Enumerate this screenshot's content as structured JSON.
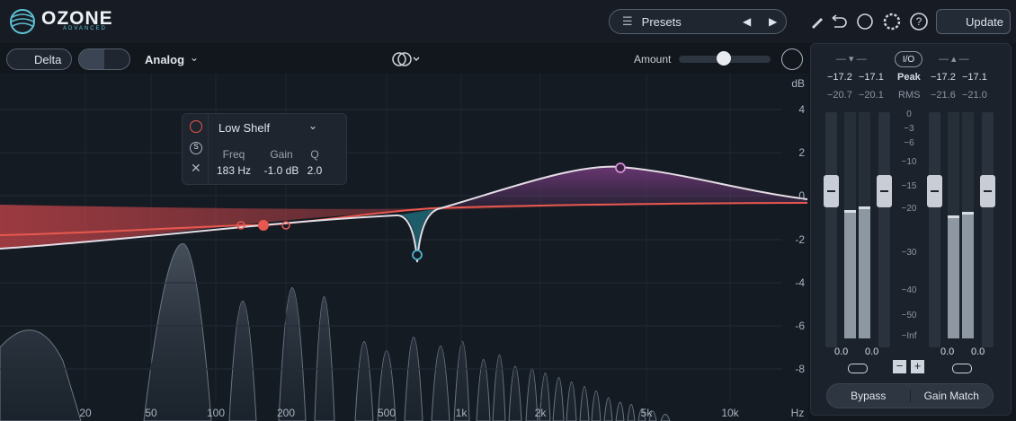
{
  "header": {
    "logo": "OZONE",
    "logo_sub": "ADVANCED",
    "presets": "Presets",
    "update": "Update"
  },
  "toolbar": {
    "delta": "Delta",
    "mode": "Analog",
    "amount": "Amount"
  },
  "eq": {
    "db_unit": "dB",
    "db_labels": [
      "4",
      "2",
      "0",
      "-2",
      "-4",
      "-6",
      "-8"
    ],
    "freq_labels": [
      "20",
      "50",
      "100",
      "200",
      "500",
      "1k",
      "2k",
      "5k",
      "10k"
    ],
    "freq_unit": "Hz"
  },
  "band": {
    "shape": "Low Shelf",
    "headers": [
      "Freq",
      "Gain",
      "Q"
    ],
    "values": [
      "183 Hz",
      "-1.0 dB",
      "2.0"
    ]
  },
  "meters": {
    "io": "I/O",
    "peak_label": "Peak",
    "rms_label": "RMS",
    "input_peak": [
      "−17.2",
      "−17.1"
    ],
    "output_peak": [
      "−17.2",
      "−17.1"
    ],
    "input_rms": [
      "−20.7",
      "−20.1"
    ],
    "output_rms": [
      "−21.6",
      "−21.0"
    ],
    "scale": [
      "0",
      "−3",
      "−6",
      "−10",
      "−15",
      "−20",
      "−30",
      "−40",
      "−50",
      "−Inf"
    ],
    "input_gain": [
      "0.0",
      "0.0"
    ],
    "output_gain": [
      "0.0",
      "0.0"
    ]
  },
  "footer": {
    "bypass": "Bypass",
    "gain_match": "Gain Match"
  }
}
